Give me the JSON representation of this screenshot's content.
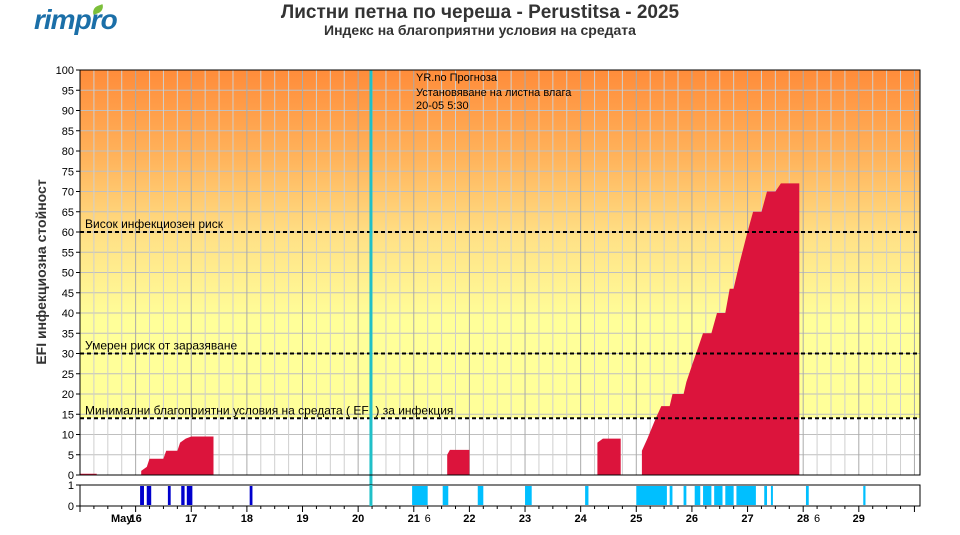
{
  "header": {
    "logo_text": "rimpro",
    "title": "Листни петна по череша - Perustitsa - 2025",
    "subtitle": "Индекс на благоприятни условия на средата"
  },
  "colors": {
    "efi_fill": "#dc143c",
    "forecast_line": "#20c0c8",
    "wetness_light": "#00bfff",
    "wetness_dark": "#0000cd",
    "background_top": "#ff8c3a",
    "background_mid": "#ffee88",
    "background_low": "#ffff99"
  },
  "forecast_marker": {
    "line1": "YR.no Прогноза",
    "line2": "Установяване на листна влага",
    "line3": "20-05 5:30"
  },
  "chart_data": {
    "type": "area",
    "ylabel": "EFI инфекциозна стойност",
    "ylim": [
      0,
      100
    ],
    "yticks": [
      0,
      5,
      10,
      15,
      20,
      25,
      30,
      35,
      40,
      45,
      50,
      55,
      60,
      65,
      70,
      75,
      80,
      85,
      90,
      95,
      100
    ],
    "x_unit": "day of May 2025",
    "xlim": [
      15.0,
      30.1
    ],
    "grid": true,
    "thresholds": [
      {
        "value": 60,
        "label": "Висок инфекциозен риск"
      },
      {
        "value": 30,
        "label": "Умерен риск от заразяване"
      },
      {
        "value": 14,
        "label": "Минимални благоприятни условия на средата ( EFI ) за инфекция"
      }
    ],
    "forecast_start": 20.23,
    "efi_series": {
      "name": "EFI",
      "points": [
        [
          15.0,
          0.3
        ],
        [
          15.3,
          0.3
        ],
        [
          15.3,
          0
        ],
        [
          16.1,
          0
        ],
        [
          16.1,
          1
        ],
        [
          16.2,
          2
        ],
        [
          16.25,
          4
        ],
        [
          16.5,
          4
        ],
        [
          16.55,
          6
        ],
        [
          16.75,
          6
        ],
        [
          16.8,
          8
        ],
        [
          16.9,
          9
        ],
        [
          17.0,
          9.5
        ],
        [
          17.4,
          9.5
        ],
        [
          17.4,
          0
        ],
        [
          21.6,
          0
        ],
        [
          21.6,
          5
        ],
        [
          21.65,
          6.2
        ],
        [
          22.0,
          6.2
        ],
        [
          22.0,
          0
        ],
        [
          24.3,
          0
        ],
        [
          24.3,
          8
        ],
        [
          24.4,
          9
        ],
        [
          24.72,
          9
        ],
        [
          24.72,
          0
        ],
        [
          25.1,
          0
        ],
        [
          25.1,
          6
        ],
        [
          25.2,
          9
        ],
        [
          25.35,
          14
        ],
        [
          25.45,
          17
        ],
        [
          25.6,
          17
        ],
        [
          25.65,
          20
        ],
        [
          25.85,
          20
        ],
        [
          25.9,
          23
        ],
        [
          26.0,
          27
        ],
        [
          26.1,
          31
        ],
        [
          26.2,
          35
        ],
        [
          26.35,
          35
        ],
        [
          26.45,
          40
        ],
        [
          26.6,
          40
        ],
        [
          26.68,
          46
        ],
        [
          26.75,
          46
        ],
        [
          26.85,
          52
        ],
        [
          27.0,
          60
        ],
        [
          27.1,
          65
        ],
        [
          27.25,
          65
        ],
        [
          27.35,
          70
        ],
        [
          27.5,
          70
        ],
        [
          27.6,
          72
        ],
        [
          27.93,
          72
        ],
        [
          27.93,
          0
        ],
        [
          30.1,
          0
        ]
      ]
    },
    "wetness_series": {
      "name": "Листна влага",
      "ylim": [
        0,
        1
      ],
      "yticks": [
        0,
        1
      ],
      "observed_periods": [
        [
          16.08,
          16.15
        ],
        [
          16.2,
          16.28
        ],
        [
          16.58,
          16.63
        ],
        [
          16.82,
          16.88
        ],
        [
          16.92,
          17.02
        ],
        [
          18.05,
          18.1
        ]
      ],
      "forecast_periods": [
        [
          20.97,
          21.25
        ],
        [
          21.52,
          21.62
        ],
        [
          22.15,
          22.25
        ],
        [
          23.0,
          23.12
        ],
        [
          24.08,
          24.14
        ],
        [
          25.0,
          25.55
        ],
        [
          25.6,
          25.65
        ],
        [
          25.85,
          25.9
        ],
        [
          26.05,
          26.15
        ],
        [
          26.2,
          26.35
        ],
        [
          26.4,
          26.55
        ],
        [
          26.6,
          26.75
        ],
        [
          26.8,
          27.15
        ],
        [
          27.3,
          27.35
        ],
        [
          27.42,
          27.45
        ],
        [
          28.05,
          28.1
        ],
        [
          29.08,
          29.12
        ]
      ]
    },
    "x_tick_labels": [
      {
        "day": 15.75,
        "label": "May",
        "bold": true
      },
      {
        "day": 16,
        "label": "16"
      },
      {
        "day": 17,
        "label": "17"
      },
      {
        "day": 18,
        "label": "18"
      },
      {
        "day": 19,
        "label": "19"
      },
      {
        "day": 20,
        "label": "20"
      },
      {
        "day": 21,
        "label": "21"
      },
      {
        "day": 21.25,
        "label": "6",
        "small": true
      },
      {
        "day": 22,
        "label": "22"
      },
      {
        "day": 23,
        "label": "23"
      },
      {
        "day": 24,
        "label": "24"
      },
      {
        "day": 25,
        "label": "25"
      },
      {
        "day": 26,
        "label": "26"
      },
      {
        "day": 27,
        "label": "27"
      },
      {
        "day": 28,
        "label": "28"
      },
      {
        "day": 28.25,
        "label": "6",
        "small": true
      },
      {
        "day": 29,
        "label": "29"
      }
    ]
  }
}
